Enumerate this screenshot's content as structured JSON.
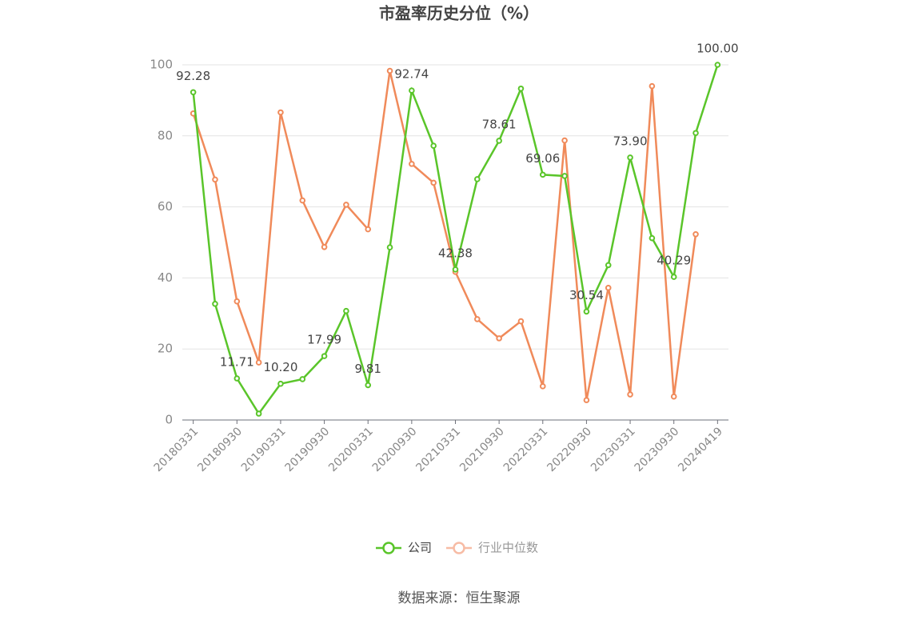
{
  "chart_data": {
    "type": "line",
    "title": "市盈率历史分位（%）",
    "categories": [
      "20180331",
      null,
      "20180930",
      null,
      "20190331",
      null,
      "20190930",
      null,
      "20200331",
      null,
      "20200930",
      null,
      "20210331",
      null,
      "20210930",
      null,
      "20220331",
      null,
      "20220930",
      null,
      "20230331",
      null,
      "20230930",
      null,
      "20240419"
    ],
    "series": [
      {
        "name": "公司",
        "color": "#5ac52a",
        "values": [
          92.28,
          32.7,
          11.71,
          1.8,
          10.2,
          11.5,
          17.99,
          30.7,
          9.81,
          48.6,
          92.74,
          77.2,
          42.38,
          67.8,
          78.61,
          93.3,
          69.06,
          68.7,
          30.54,
          43.6,
          73.9,
          51.2,
          40.29,
          80.8,
          100
        ],
        "value_labels": [
          "92.28",
          null,
          "11.71",
          null,
          "10.20",
          null,
          "17.99",
          null,
          "9.81",
          null,
          "92.74",
          null,
          "42.38",
          null,
          "78.61",
          null,
          "69.06",
          null,
          "30.54",
          null,
          "73.90",
          null,
          "40.29",
          null,
          "100.00"
        ]
      },
      {
        "name": "行业中位数",
        "color": "#f08a5a",
        "values": [
          86.3,
          67.7,
          33.4,
          16.2,
          86.6,
          61.8,
          48.7,
          60.6,
          53.7,
          98.3,
          72.1,
          66.8,
          41.7,
          28.4,
          23.0,
          27.8,
          9.5,
          78.7,
          5.6,
          37.2,
          7.2,
          94.0,
          6.6,
          52.3,
          null
        ]
      }
    ],
    "ylim": [
      0,
      100
    ],
    "yticks": [
      0,
      20,
      40,
      60,
      80,
      100
    ],
    "grid": true,
    "legend": "bottom",
    "source": "数据来源：恒生聚源"
  }
}
